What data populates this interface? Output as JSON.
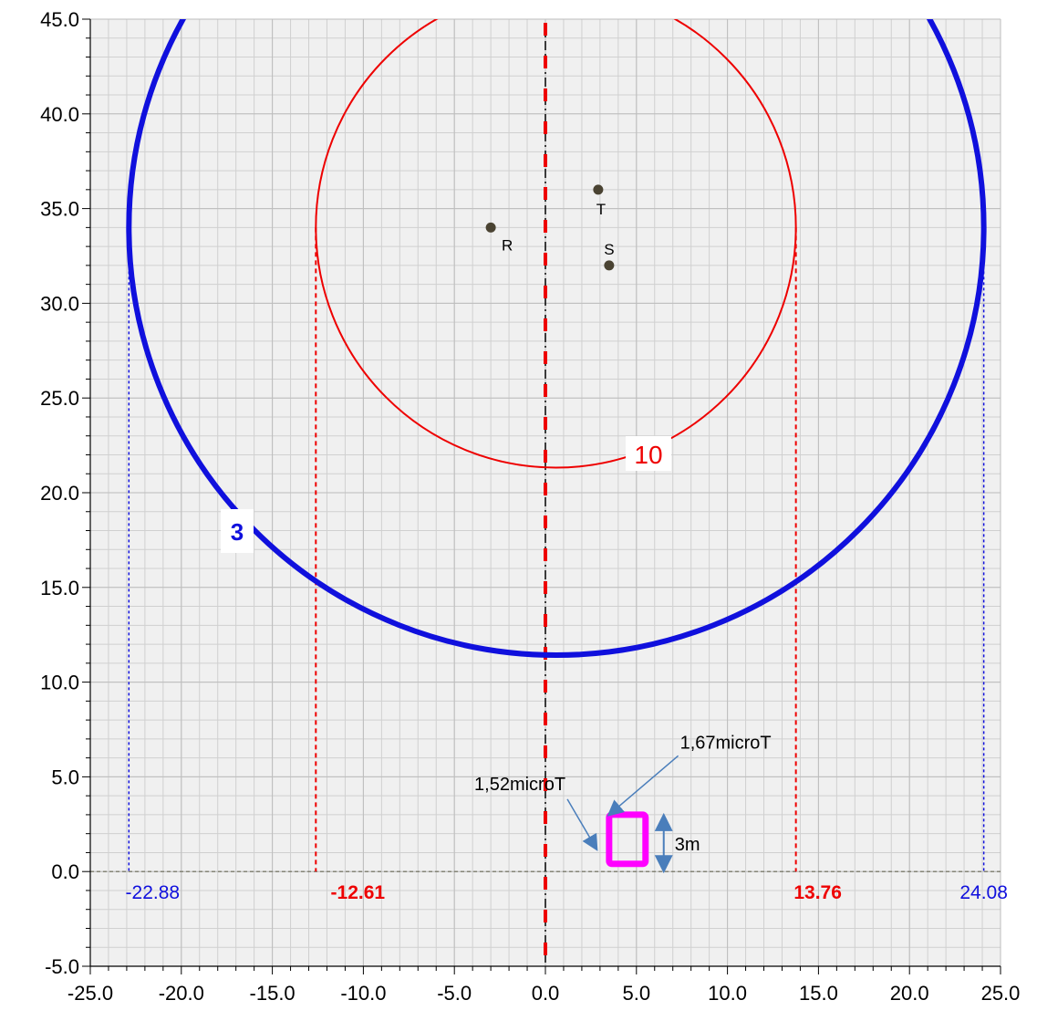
{
  "chart_data": {
    "type": "scatter",
    "xlim": [
      -25,
      25
    ],
    "ylim": [
      -5,
      45
    ],
    "grid": true,
    "x_ticks": [
      "-25.0",
      "-20.0",
      "-15.0",
      "-10.0",
      "-5.0",
      "0.0",
      "5.0",
      "10.0",
      "15.0",
      "20.0",
      "25.0"
    ],
    "y_ticks": [
      "-5.0",
      "0.0",
      "5.0",
      "10.0",
      "15.0",
      "20.0",
      "25.0",
      "30.0",
      "35.0",
      "40.0",
      "45.0"
    ],
    "points": [
      {
        "label": "R",
        "x": -3.0,
        "y": 34.0
      },
      {
        "label": "T",
        "x": 2.9,
        "y": 36.0
      },
      {
        "label": "S",
        "x": 3.5,
        "y": 32.0
      }
    ],
    "contours": [
      {
        "label": "3",
        "color": "#1010dd",
        "center": [
          0.6,
          34.0
        ],
        "radius": 23.48,
        "left_x": -22.88,
        "right_x": 24.08,
        "left_label": "-22.88",
        "right_label": "24.08"
      },
      {
        "label": "10",
        "color": "#ee0000",
        "center": [
          0.575,
          34.0
        ],
        "radius": 13.185,
        "left_x": -12.61,
        "right_x": 13.76,
        "left_label": "-12.61",
        "right_label": "13.76"
      }
    ],
    "centerline_x": 0,
    "box": {
      "x_min": 3.5,
      "x_max": 5.5,
      "y_min": 0.3,
      "y_max": 3.0,
      "color": "#ff00ff"
    },
    "height_marker": {
      "x": 6.5,
      "y_from": 0,
      "y_to": 3,
      "label": "3m"
    },
    "annotations": [
      {
        "text": "1,67microT",
        "text_x": 9.9,
        "text_y": 6.5,
        "arrow_to": [
          3.5,
          3.0
        ]
      },
      {
        "text": "1,52microT",
        "text_x": -1.4,
        "text_y": 4.3,
        "arrow_to": [
          2.8,
          1.2
        ]
      }
    ]
  }
}
